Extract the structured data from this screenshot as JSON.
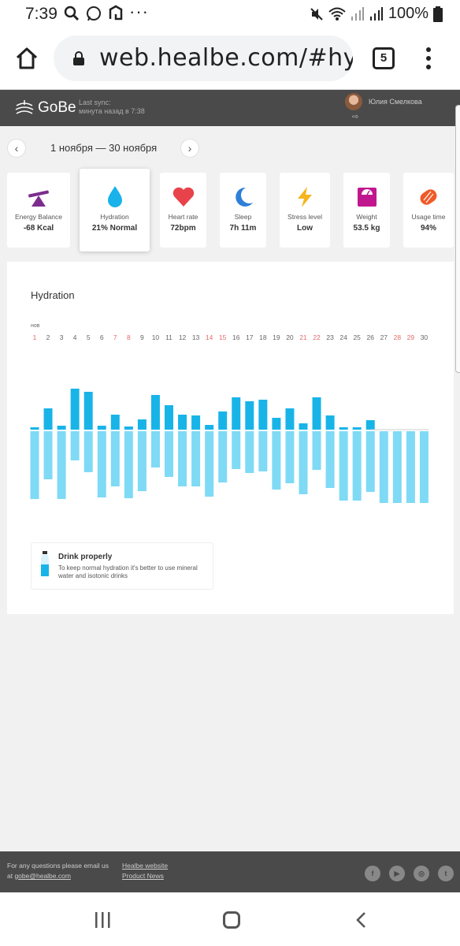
{
  "status_bar": {
    "time": "7:39",
    "battery": "100%"
  },
  "browser": {
    "url": "web.healbe.com/#hydrat",
    "tab_count": "5"
  },
  "app": {
    "logo": "GoBe",
    "sync_label": "Last sync:",
    "sync_time": "минута назад в 7:38",
    "user_name": "Юлия Смелкова"
  },
  "date_nav": {
    "range": "1 ноября — 30 ноября",
    "prev": "‹",
    "next": "›"
  },
  "cards": [
    {
      "label": "Energy Balance",
      "value": "-68 Kcal",
      "icon": "balance-icon",
      "color": "#7b2d8e"
    },
    {
      "label": "Hydration",
      "value": "21% Normal",
      "icon": "water-drop-icon",
      "color": "#1ab2ea"
    },
    {
      "label": "Heart rate",
      "value": "72bpm",
      "icon": "heart-icon",
      "color": "#e8434b"
    },
    {
      "label": "Sleep",
      "value": "7h 11m",
      "icon": "moon-icon",
      "color": "#2f7fd8"
    },
    {
      "label": "Stress level",
      "value": "Low",
      "icon": "lightning-icon",
      "color": "#f5b51d"
    },
    {
      "label": "Weight",
      "value": "53.5 kg",
      "icon": "scale-icon",
      "color": "#c0178e"
    },
    {
      "label": "Usage time",
      "value": "94%",
      "icon": "bracelet-icon",
      "color": "#f05a28"
    }
  ],
  "chart": {
    "title": "Hydration",
    "month_label": "нов",
    "positive_color": "#18b4e8",
    "negative_color": "#7fdaf5",
    "weekend_color": "#e56a6a",
    "weekday_color": "#666666"
  },
  "chart_data": {
    "type": "bar",
    "categories": [
      "1",
      "2",
      "3",
      "4",
      "5",
      "6",
      "7",
      "8",
      "9",
      "10",
      "11",
      "12",
      "13",
      "14",
      "15",
      "16",
      "17",
      "18",
      "19",
      "20",
      "21",
      "22",
      "23",
      "24",
      "25",
      "26",
      "27",
      "28",
      "29",
      "30"
    ],
    "weekend_days": [
      "1",
      "7",
      "8",
      "14",
      "15",
      "21",
      "22",
      "28",
      "29"
    ],
    "series": [
      {
        "values": [
          3,
          27,
          5,
          52,
          48,
          5,
          19,
          4,
          13,
          44,
          31,
          19,
          18,
          6,
          23,
          41,
          36,
          38,
          15,
          27,
          8,
          41,
          18,
          2,
          2,
          12,
          0,
          0,
          0,
          0
        ]
      },
      {
        "values": [
          -86,
          -61,
          -86,
          -37,
          -52,
          -84,
          -70,
          -85,
          -76,
          -46,
          -58,
          -70,
          -70,
          -83,
          -65,
          -48,
          -53,
          -51,
          -74,
          -66,
          -80,
          -49,
          -72,
          -88,
          -88,
          -77,
          -91,
          -91,
          -91,
          -91
        ]
      }
    ]
  },
  "tip": {
    "title": "Drink properly",
    "text": "To keep normal hydration it's better to use mineral water and isotonic drinks"
  },
  "footer": {
    "question_text": "For any questions please email us",
    "at_text": "at ",
    "email": "gobe@healbe.com",
    "link_website": "Healbe website",
    "link_news": "Product News",
    "socials": [
      "f",
      "▶",
      "◎",
      "t"
    ]
  }
}
